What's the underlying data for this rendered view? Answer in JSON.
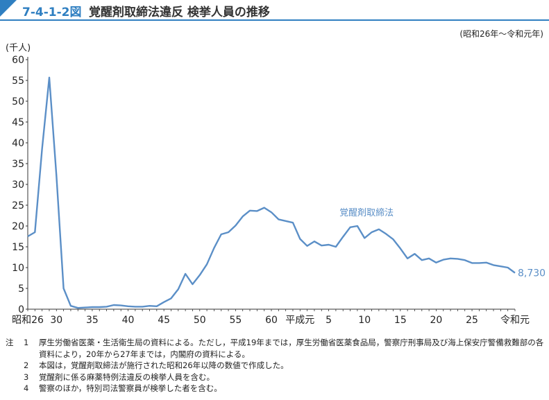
{
  "header": {
    "figure_number": "7-4-1-2図",
    "title": "覚醒剤取締法違反 検挙人員の推移",
    "period": "(昭和26年～令和元年)"
  },
  "chart_data": {
    "type": "line",
    "ylabel": "(千人)",
    "ylim": [
      0,
      60
    ],
    "yticks": [
      0,
      5,
      10,
      15,
      20,
      25,
      30,
      35,
      40,
      45,
      50,
      55,
      60
    ],
    "xlim": [
      1951,
      2019
    ],
    "xtick_labels": [
      {
        "x": 1951,
        "label": "昭和26"
      },
      {
        "x": 1955,
        "label": "30"
      },
      {
        "x": 1960,
        "label": "35"
      },
      {
        "x": 1965,
        "label": "40"
      },
      {
        "x": 1970,
        "label": "45"
      },
      {
        "x": 1975,
        "label": "50"
      },
      {
        "x": 1980,
        "label": "55"
      },
      {
        "x": 1985,
        "label": "60"
      },
      {
        "x": 1989,
        "label": "平成元"
      },
      {
        "x": 1993,
        "label": "5"
      },
      {
        "x": 1998,
        "label": "10"
      },
      {
        "x": 2003,
        "label": "15"
      },
      {
        "x": 2008,
        "label": "20"
      },
      {
        "x": 2013,
        "label": "25"
      },
      {
        "x": 2019,
        "label": "令和元"
      }
    ],
    "series": [
      {
        "name": "覚醒剤取締法",
        "color": "#5b8fc7",
        "end_label": "8,730",
        "x": [
          1951,
          1952,
          1953,
          1954,
          1955,
          1956,
          1957,
          1958,
          1959,
          1960,
          1961,
          1962,
          1963,
          1964,
          1965,
          1966,
          1967,
          1968,
          1969,
          1970,
          1971,
          1972,
          1973,
          1974,
          1975,
          1976,
          1977,
          1978,
          1979,
          1980,
          1981,
          1982,
          1983,
          1984,
          1985,
          1986,
          1987,
          1988,
          1989,
          1990,
          1991,
          1992,
          1993,
          1994,
          1995,
          1996,
          1997,
          1998,
          1999,
          2000,
          2001,
          2002,
          2003,
          2004,
          2005,
          2006,
          2007,
          2008,
          2009,
          2010,
          2011,
          2012,
          2013,
          2014,
          2015,
          2016,
          2017,
          2018,
          2019
        ],
        "values": [
          17.5,
          18.5,
          38.5,
          55.7,
          32.1,
          5.0,
          0.8,
          0.3,
          0.4,
          0.5,
          0.5,
          0.6,
          1.0,
          0.9,
          0.7,
          0.6,
          0.6,
          0.8,
          0.7,
          1.7,
          2.6,
          4.8,
          8.5,
          6.0,
          8.2,
          10.8,
          14.7,
          18.0,
          18.5,
          20.1,
          22.3,
          23.7,
          23.6,
          24.4,
          23.3,
          21.6,
          21.2,
          20.8,
          16.9,
          15.2,
          16.3,
          15.3,
          15.5,
          15.0,
          17.4,
          19.7,
          20.0,
          17.1,
          18.5,
          19.2,
          18.1,
          16.8,
          14.6,
          12.2,
          13.3,
          11.8,
          12.2,
          11.2,
          11.9,
          12.2,
          12.1,
          11.8,
          11.1,
          11.1,
          11.2,
          10.6,
          10.3,
          10.0,
          8.73
        ]
      }
    ]
  },
  "notes": {
    "head": "注",
    "items": [
      {
        "num": "1",
        "text": "厚生労働省医薬・生活衛生局の資料による。ただし，平成19年までは，厚生労働省医薬食品局，警察庁刑事局及び海上保安庁警備救難部の各資料により，20年から27年までは，内閣府の資料による。"
      },
      {
        "num": "2",
        "text": "本図は，覚醒剤取締法が施行された昭和26年以降の数値で作成した。"
      },
      {
        "num": "3",
        "text": "覚醒剤に係る麻薬特例法違反の検挙人員を含む。"
      },
      {
        "num": "4",
        "text": "警察のほか，特別司法警察員が検挙した者を含む。"
      }
    ]
  }
}
